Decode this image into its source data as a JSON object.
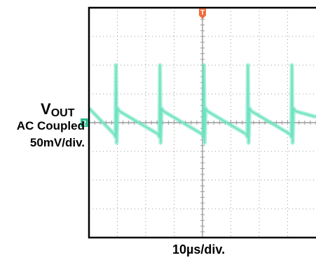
{
  "labels": {
    "channel_main": "V",
    "channel_sub": "OUT",
    "coupling": "AC Coupled",
    "vertical_scale": "50mV/div.",
    "horizontal_scale": "10µs/div.",
    "trigger_marker": "T",
    "channel_marker": "2"
  },
  "colors": {
    "trace": "#6fe3c1",
    "trigger": "#f26b3a",
    "channel_marker": "#2fb88e",
    "grid": "#9a9a9a",
    "frame": "#000000"
  },
  "chart_data": {
    "type": "line",
    "title": "",
    "xlabel": "10µs/div.",
    "ylabel": "VOUT AC Coupled 50mV/div.",
    "x_unit": "µs",
    "y_unit": "mV",
    "xlim": [
      -40,
      40
    ],
    "ylim": [
      -200,
      200
    ],
    "grid": true,
    "divisions": {
      "x": 8,
      "y": 8
    },
    "series": [
      {
        "waveform": "sawtooth ripple with switching spikes",
        "period_us": 15.5,
        "spike_times_us": [
          -30.5,
          -15.0,
          0.5,
          16.0,
          31.5
        ],
        "spike_peak_mV": 100,
        "spike_trough_mV": -35,
        "ramp_start_mV": 20,
        "ramp_end_mV": -20
      }
    ]
  }
}
